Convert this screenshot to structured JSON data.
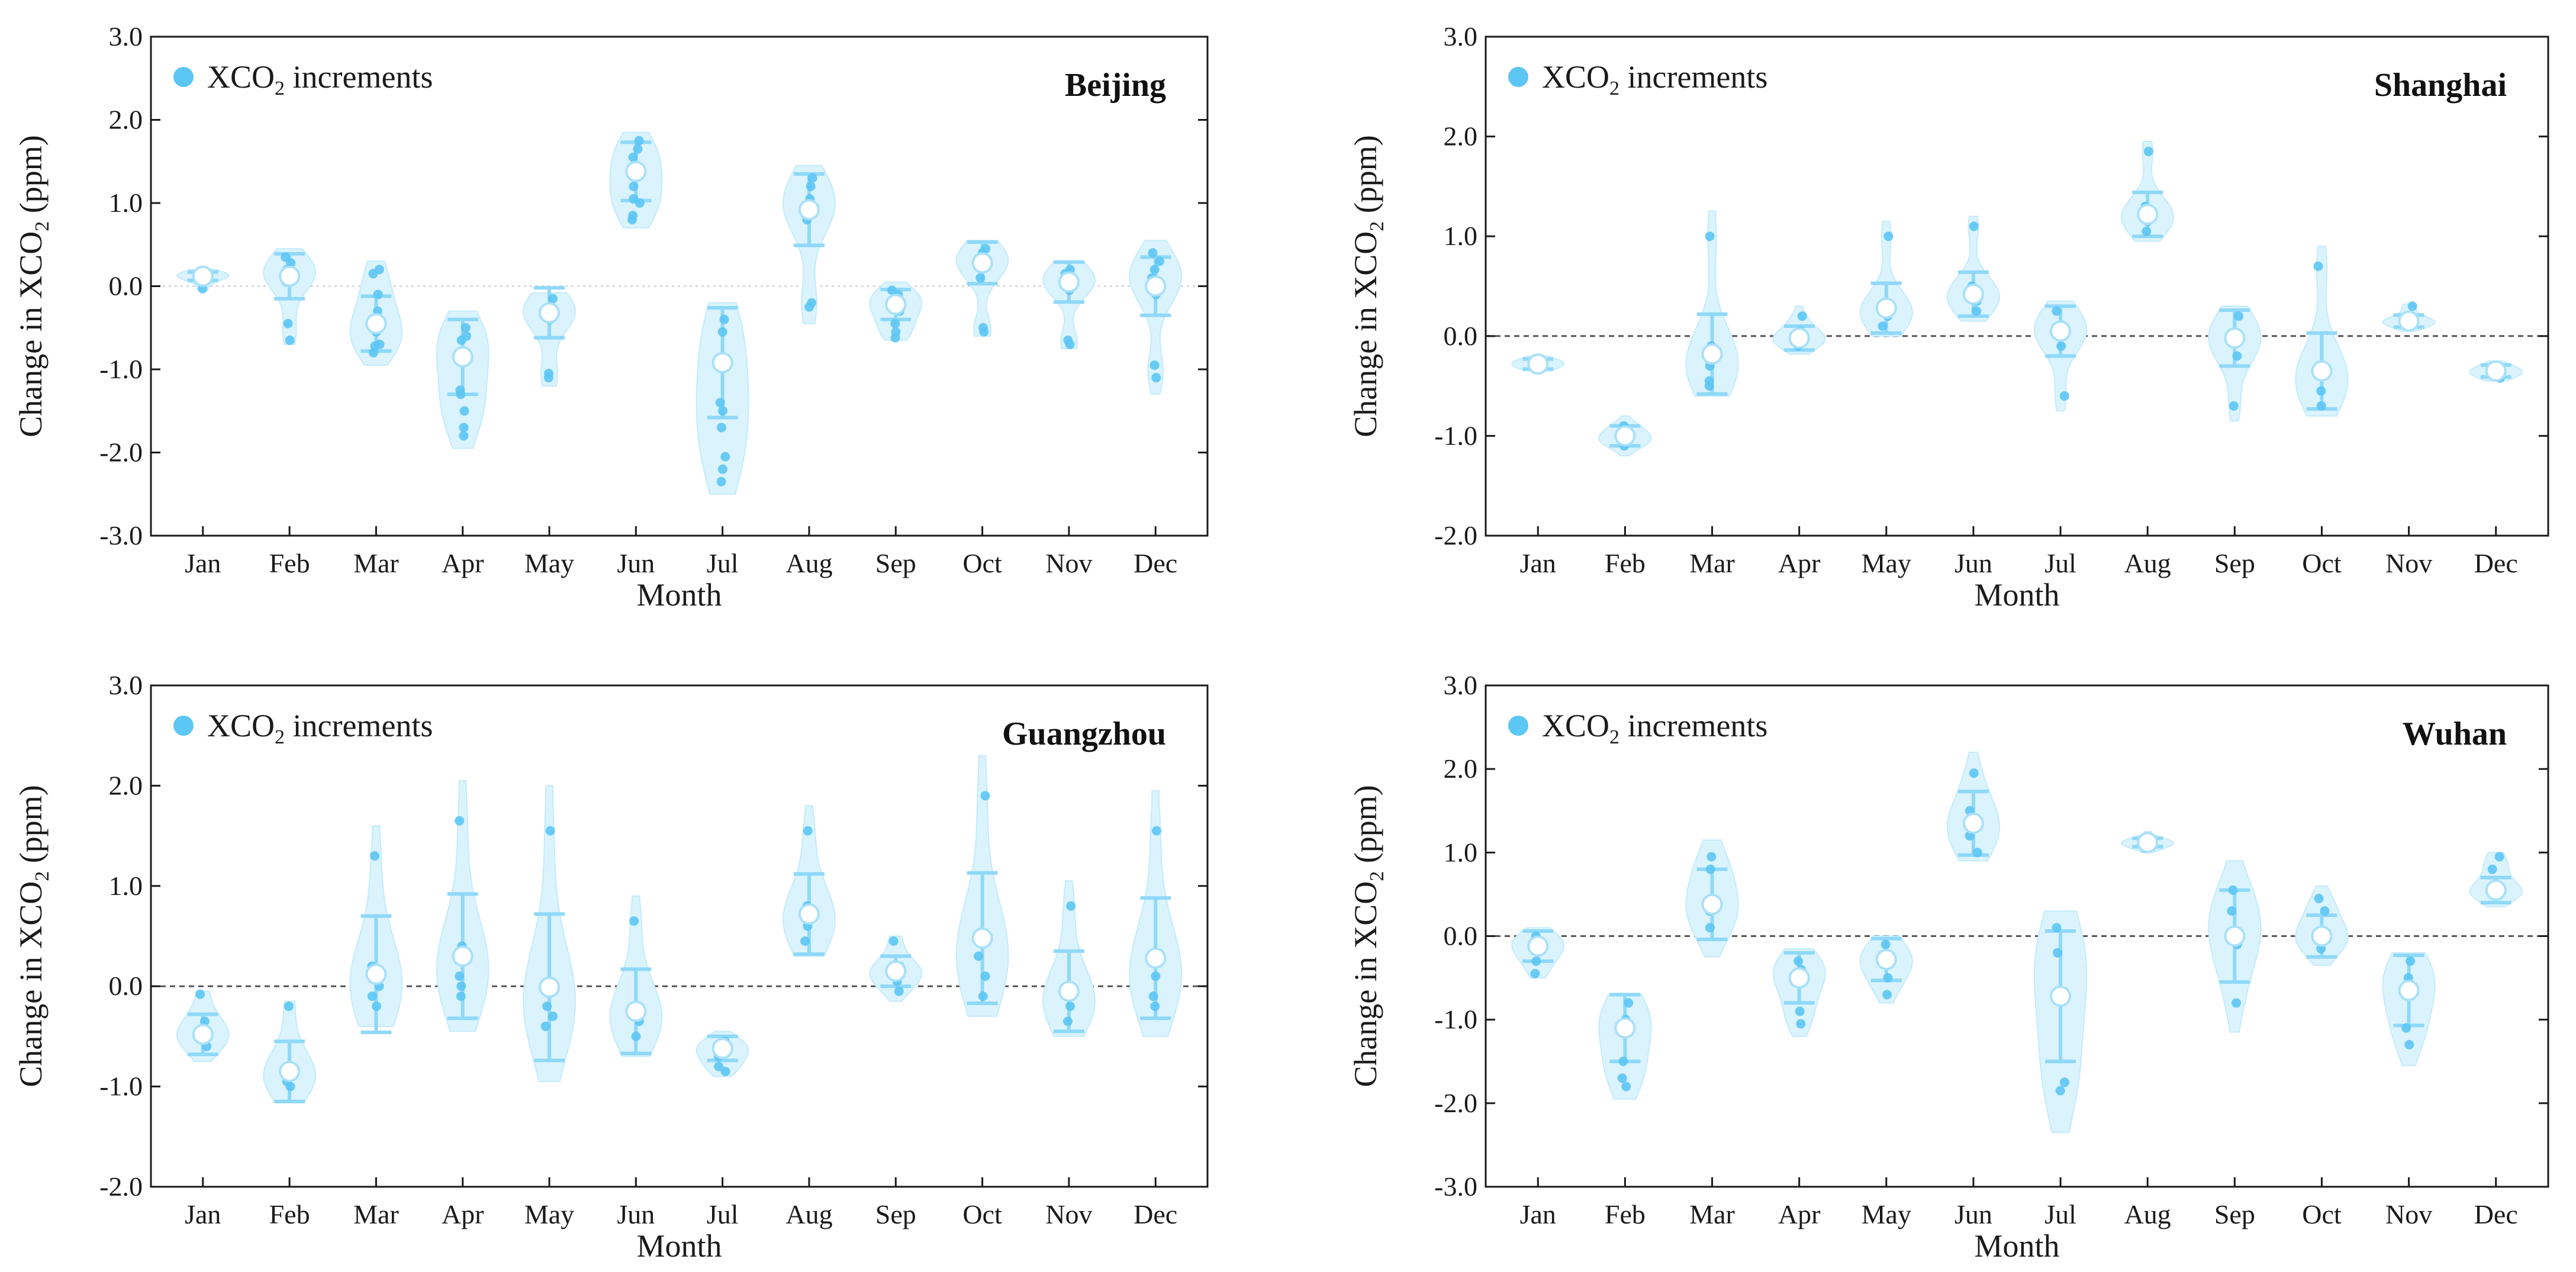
{
  "colors": {
    "violin": "#daf3fd",
    "violin_stroke": "#c5ebfb",
    "point": "#5cc6f4",
    "errorbar": "#8fd8f8",
    "zero_line": "#555555",
    "axis": "#1a1a1a",
    "mean_fill": "#ffffff",
    "mean_stroke": "#a9e0f9"
  },
  "chart_data": [
    {
      "type": "violin",
      "id": "beijing",
      "title": "Beijing",
      "xlabel": "Month",
      "ylabel": "Change in XCO2 (ppm)",
      "ylabel_parts": [
        "Change in XCO",
        "2",
        " (ppm)"
      ],
      "legend": {
        "parts": [
          "XCO",
          "2",
          " increments"
        ]
      },
      "categories": [
        "Jan",
        "Feb",
        "Mar",
        "Apr",
        "May",
        "Jun",
        "Jul",
        "Aug",
        "Sep",
        "Oct",
        "Nov",
        "Dec"
      ],
      "ylim": [
        -3.0,
        3.0
      ],
      "yticks": [
        "-3.0",
        "-2.0",
        "-1.0",
        "0.0",
        "1.0",
        "2.0",
        "3.0"
      ],
      "zero_line": "dotted-light",
      "series": [
        {
          "month": "Jan",
          "mean": 0.12,
          "sd": 0.05,
          "min": -0.05,
          "max": 0.2,
          "points": [
            0.18,
            0.15,
            0.12,
            0.08,
            -0.03
          ]
        },
        {
          "month": "Feb",
          "mean": 0.12,
          "sd": 0.27,
          "min": -0.7,
          "max": 0.45,
          "points": [
            0.35,
            0.28,
            0.2,
            0.1,
            0.05,
            -0.45,
            -0.65
          ]
        },
        {
          "month": "Mar",
          "mean": -0.45,
          "sd": 0.33,
          "min": -0.95,
          "max": 0.3,
          "points": [
            0.2,
            0.15,
            -0.1,
            -0.3,
            -0.55,
            -0.7,
            -0.72,
            -0.8
          ]
        },
        {
          "month": "Apr",
          "mean": -0.85,
          "sd": 0.45,
          "min": -1.95,
          "max": -0.3,
          "points": [
            -0.5,
            -0.6,
            -0.65,
            -1.25,
            -1.3,
            -1.5,
            -1.7,
            -1.8
          ]
        },
        {
          "month": "May",
          "mean": -0.32,
          "sd": 0.3,
          "min": -1.2,
          "max": -0.08,
          "points": [
            -0.15,
            -0.25,
            -0.35,
            -0.4,
            -1.05,
            -1.1
          ]
        },
        {
          "month": "Jun",
          "mean": 1.38,
          "sd": 0.35,
          "min": 0.7,
          "max": 1.85,
          "points": [
            1.75,
            1.65,
            1.55,
            1.2,
            1.05,
            1.0,
            0.85,
            0.8
          ]
        },
        {
          "month": "Jul",
          "mean": -0.92,
          "sd": 0.66,
          "min": -2.5,
          "max": -0.2,
          "points": [
            -0.4,
            -0.55,
            -1.4,
            -1.5,
            -1.7,
            -2.05,
            -2.2,
            -2.35
          ]
        },
        {
          "month": "Aug",
          "mean": 0.92,
          "sd": 0.43,
          "min": -0.45,
          "max": 1.45,
          "points": [
            1.3,
            1.2,
            1.05,
            0.9,
            0.8,
            -0.2,
            -0.25
          ]
        },
        {
          "month": "Sep",
          "mean": -0.22,
          "sd": 0.18,
          "min": -0.65,
          "max": 0.05,
          "points": [
            -0.05,
            -0.1,
            -0.3,
            -0.45,
            -0.55,
            -0.62
          ]
        },
        {
          "month": "Oct",
          "mean": 0.28,
          "sd": 0.25,
          "min": -0.6,
          "max": 0.55,
          "points": [
            0.45,
            0.4,
            0.3,
            0.1,
            -0.5,
            -0.55
          ]
        },
        {
          "month": "Nov",
          "mean": 0.05,
          "sd": 0.24,
          "min": -0.75,
          "max": 0.3,
          "points": [
            0.2,
            0.15,
            0.05,
            -0.05,
            -0.65,
            -0.7
          ]
        },
        {
          "month": "Dec",
          "mean": 0.0,
          "sd": 0.35,
          "min": -1.3,
          "max": 0.55,
          "points": [
            0.4,
            0.3,
            0.2,
            0.1,
            -0.1,
            -0.95,
            -1.1
          ]
        }
      ]
    },
    {
      "type": "violin",
      "id": "shanghai",
      "title": "Shanghai",
      "xlabel": "Month",
      "ylabel": "Change in XCO2 (ppm)",
      "ylabel_parts": [
        "Change in XCO",
        "2",
        " (ppm)"
      ],
      "legend": {
        "parts": [
          "XCO",
          "2",
          " increments"
        ]
      },
      "categories": [
        "Jan",
        "Feb",
        "Mar",
        "Apr",
        "May",
        "Jun",
        "Jul",
        "Aug",
        "Sep",
        "Oct",
        "Nov",
        "Dec"
      ],
      "ylim": [
        -2.0,
        3.0
      ],
      "yticks": [
        "-2.0",
        "-1.0",
        "0.0",
        "1.0",
        "2.0",
        "3.0"
      ],
      "zero_line": "dashed",
      "series": [
        {
          "month": "Jan",
          "mean": -0.28,
          "sd": 0.05,
          "min": -0.35,
          "max": -0.2,
          "points": [
            -0.25,
            -0.3
          ]
        },
        {
          "month": "Feb",
          "mean": -1.0,
          "sd": 0.1,
          "min": -1.2,
          "max": -0.8,
          "points": [
            -0.9,
            -1.05,
            -1.1
          ]
        },
        {
          "month": "Mar",
          "mean": -0.18,
          "sd": 0.4,
          "min": -0.6,
          "max": 1.25,
          "points": [
            1.0,
            -0.1,
            -0.3,
            -0.45,
            -0.5
          ]
        },
        {
          "month": "Apr",
          "mean": -0.02,
          "sd": 0.12,
          "min": -0.18,
          "max": 0.3,
          "points": [
            0.2,
            0.05,
            -0.05,
            -0.1
          ]
        },
        {
          "month": "May",
          "mean": 0.28,
          "sd": 0.25,
          "min": 0.0,
          "max": 1.15,
          "points": [
            1.0,
            0.3,
            0.2,
            0.1
          ]
        },
        {
          "month": "Jun",
          "mean": 0.42,
          "sd": 0.22,
          "min": 0.15,
          "max": 1.2,
          "points": [
            1.1,
            0.5,
            0.35,
            0.25
          ]
        },
        {
          "month": "Jul",
          "mean": 0.05,
          "sd": 0.25,
          "min": -0.75,
          "max": 0.35,
          "points": [
            0.25,
            0.1,
            -0.1,
            -0.6
          ]
        },
        {
          "month": "Aug",
          "mean": 1.22,
          "sd": 0.22,
          "min": 0.95,
          "max": 1.95,
          "points": [
            1.85,
            1.3,
            1.15,
            1.05
          ]
        },
        {
          "month": "Sep",
          "mean": -0.02,
          "sd": 0.28,
          "min": -0.85,
          "max": 0.3,
          "points": [
            0.2,
            0.0,
            -0.2,
            -0.7
          ]
        },
        {
          "month": "Oct",
          "mean": -0.35,
          "sd": 0.38,
          "min": -0.8,
          "max": 0.9,
          "points": [
            0.7,
            -0.3,
            -0.55,
            -0.7
          ]
        },
        {
          "month": "Nov",
          "mean": 0.15,
          "sd": 0.06,
          "min": 0.05,
          "max": 0.32,
          "points": [
            0.3,
            0.15,
            0.1
          ]
        },
        {
          "month": "Dec",
          "mean": -0.35,
          "sd": 0.06,
          "min": -0.45,
          "max": -0.25,
          "points": [
            -0.3,
            -0.38,
            -0.42
          ]
        }
      ]
    },
    {
      "type": "violin",
      "id": "guangzhou",
      "title": "Guangzhou",
      "xlabel": "Month",
      "ylabel": "Change in XCO2 (ppm)",
      "ylabel_parts": [
        "Change in XCO",
        "2",
        " (ppm)"
      ],
      "legend": {
        "parts": [
          "XCO",
          "2",
          " increments"
        ]
      },
      "categories": [
        "Jan",
        "Feb",
        "Mar",
        "Apr",
        "May",
        "Jun",
        "Jul",
        "Aug",
        "Sep",
        "Oct",
        "Nov",
        "Dec"
      ],
      "ylim": [
        -2.0,
        3.0
      ],
      "yticks": [
        "-2.0",
        "-1.0",
        "0.0",
        "1.0",
        "2.0",
        "3.0"
      ],
      "zero_line": "dashed",
      "series": [
        {
          "month": "Jan",
          "mean": -0.48,
          "sd": 0.2,
          "min": -0.75,
          "max": -0.05,
          "points": [
            -0.08,
            -0.35,
            -0.5,
            -0.6
          ]
        },
        {
          "month": "Feb",
          "mean": -0.85,
          "sd": 0.3,
          "min": -1.15,
          "max": -0.15,
          "points": [
            -0.2,
            -0.8,
            -0.95,
            -1.0
          ]
        },
        {
          "month": "Mar",
          "mean": 0.12,
          "sd": 0.58,
          "min": -0.4,
          "max": 1.6,
          "points": [
            1.3,
            0.2,
            0.0,
            -0.1,
            -0.2
          ]
        },
        {
          "month": "Apr",
          "mean": 0.3,
          "sd": 0.62,
          "min": -0.45,
          "max": 2.05,
          "points": [
            1.65,
            0.4,
            0.1,
            0.0,
            -0.1
          ]
        },
        {
          "month": "May",
          "mean": -0.01,
          "sd": 0.73,
          "min": -0.95,
          "max": 2.0,
          "points": [
            1.55,
            0.0,
            -0.2,
            -0.3,
            -0.4
          ]
        },
        {
          "month": "Jun",
          "mean": -0.25,
          "sd": 0.42,
          "min": -0.7,
          "max": 0.9,
          "points": [
            0.65,
            -0.2,
            -0.35,
            -0.5
          ]
        },
        {
          "month": "Jul",
          "mean": -0.62,
          "sd": 0.12,
          "min": -0.9,
          "max": -0.45,
          "points": [
            -0.55,
            -0.7,
            -0.8,
            -0.85
          ]
        },
        {
          "month": "Aug",
          "mean": 0.72,
          "sd": 0.4,
          "min": 0.3,
          "max": 1.8,
          "points": [
            1.55,
            0.8,
            0.6,
            0.45
          ]
        },
        {
          "month": "Sep",
          "mean": 0.15,
          "sd": 0.15,
          "min": -0.15,
          "max": 0.5,
          "points": [
            0.45,
            0.2,
            0.05,
            -0.05
          ]
        },
        {
          "month": "Oct",
          "mean": 0.48,
          "sd": 0.65,
          "min": -0.3,
          "max": 2.3,
          "points": [
            1.9,
            0.5,
            0.3,
            0.1,
            -0.1
          ]
        },
        {
          "month": "Nov",
          "mean": -0.05,
          "sd": 0.4,
          "min": -0.5,
          "max": 1.05,
          "points": [
            0.8,
            -0.1,
            -0.2,
            -0.35
          ]
        },
        {
          "month": "Dec",
          "mean": 0.28,
          "sd": 0.6,
          "min": -0.5,
          "max": 1.95,
          "points": [
            1.55,
            0.3,
            0.1,
            -0.1,
            -0.2
          ]
        }
      ]
    },
    {
      "type": "violin",
      "id": "wuhan",
      "title": "Wuhan",
      "xlabel": "Month",
      "ylabel": "Change in XCO2 (ppm)",
      "ylabel_parts": [
        "Change in XCO",
        "2",
        " (ppm)"
      ],
      "legend": {
        "parts": [
          "XCO",
          "2",
          " increments"
        ]
      },
      "categories": [
        "Jan",
        "Feb",
        "Mar",
        "Apr",
        "May",
        "Jun",
        "Jul",
        "Aug",
        "Sep",
        "Oct",
        "Nov",
        "Dec"
      ],
      "ylim": [
        -3.0,
        3.0
      ],
      "yticks": [
        "-3.0",
        "-2.0",
        "-1.0",
        "0.0",
        "1.0",
        "2.0",
        "3.0"
      ],
      "zero_line": "dashed",
      "series": [
        {
          "month": "Jan",
          "mean": -0.12,
          "sd": 0.18,
          "min": -0.5,
          "max": 0.1,
          "points": [
            0.0,
            -0.1,
            -0.3,
            -0.45
          ]
        },
        {
          "month": "Feb",
          "mean": -1.1,
          "sd": 0.4,
          "min": -1.95,
          "max": -0.7,
          "points": [
            -0.8,
            -1.0,
            -1.5,
            -1.7,
            -1.8
          ]
        },
        {
          "month": "Mar",
          "mean": 0.38,
          "sd": 0.42,
          "min": -0.25,
          "max": 1.15,
          "points": [
            0.95,
            0.8,
            0.3,
            0.1
          ]
        },
        {
          "month": "Apr",
          "mean": -0.5,
          "sd": 0.3,
          "min": -1.2,
          "max": -0.15,
          "points": [
            -0.3,
            -0.4,
            -0.9,
            -1.05
          ]
        },
        {
          "month": "May",
          "mean": -0.28,
          "sd": 0.25,
          "min": -0.8,
          "max": 0.0,
          "points": [
            -0.1,
            -0.3,
            -0.5,
            -0.7
          ]
        },
        {
          "month": "Jun",
          "mean": 1.35,
          "sd": 0.38,
          "min": 0.9,
          "max": 2.2,
          "points": [
            1.95,
            1.5,
            1.2,
            1.0
          ]
        },
        {
          "month": "Jul",
          "mean": -0.72,
          "sd": 0.78,
          "min": -2.35,
          "max": 0.3,
          "points": [
            0.1,
            -0.2,
            -1.75,
            -1.85
          ]
        },
        {
          "month": "Aug",
          "mean": 1.12,
          "sd": 0.05,
          "min": 1.0,
          "max": 1.25,
          "points": [
            1.15,
            1.1,
            1.05
          ]
        },
        {
          "month": "Sep",
          "mean": 0.0,
          "sd": 0.55,
          "min": -1.15,
          "max": 0.9,
          "points": [
            0.55,
            0.3,
            -0.1,
            -0.8
          ]
        },
        {
          "month": "Oct",
          "mean": 0.0,
          "sd": 0.25,
          "min": -0.35,
          "max": 0.6,
          "points": [
            0.45,
            0.3,
            0.0,
            -0.15
          ]
        },
        {
          "month": "Nov",
          "mean": -0.65,
          "sd": 0.42,
          "min": -1.55,
          "max": -0.2,
          "points": [
            -0.3,
            -0.5,
            -1.1,
            -1.3
          ]
        },
        {
          "month": "Dec",
          "mean": 0.55,
          "sd": 0.15,
          "min": 0.35,
          "max": 1.0,
          "points": [
            0.95,
            0.8,
            0.5
          ]
        }
      ]
    }
  ]
}
